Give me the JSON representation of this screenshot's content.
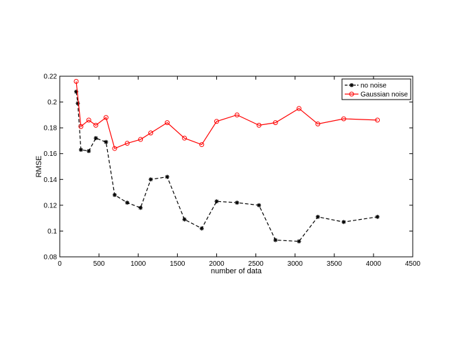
{
  "chart_data": {
    "type": "line",
    "title": "",
    "xlabel": "number of data",
    "ylabel": "RMSE",
    "xlim": [
      0,
      4500
    ],
    "ylim": [
      0.08,
      0.22
    ],
    "xticks": [
      0,
      500,
      1000,
      1500,
      2000,
      2500,
      3000,
      3500,
      4000,
      4500
    ],
    "yticks": [
      0.08,
      0.1,
      0.12,
      0.14,
      0.16,
      0.18,
      0.2,
      0.22
    ],
    "xtick_labels": [
      "0",
      "500",
      "1000",
      "1500",
      "2000",
      "2500",
      "3000",
      "3500",
      "4000",
      "4500"
    ],
    "ytick_labels": [
      "0.08",
      "0.1",
      "0.12",
      "0.14",
      "0.16",
      "0.18",
      "0.2",
      "0.22"
    ],
    "grid": false,
    "legend": "top-right",
    "series": [
      {
        "name": "no noise",
        "color": "#000000",
        "line": "dashed",
        "marker": "asterisk",
        "x": [
          210,
          230,
          270,
          370,
          460,
          590,
          700,
          860,
          1030,
          1160,
          1370,
          1590,
          1810,
          2000,
          2260,
          2540,
          2750,
          3050,
          3290,
          3620,
          4050
        ],
        "y": [
          0.208,
          0.199,
          0.163,
          0.162,
          0.172,
          0.169,
          0.128,
          0.122,
          0.118,
          0.14,
          0.142,
          0.109,
          0.102,
          0.123,
          0.122,
          0.12,
          0.093,
          0.092,
          0.111,
          0.107,
          0.111
        ]
      },
      {
        "name": "Gaussian noise",
        "color": "#ff0000",
        "line": "solid",
        "marker": "circle",
        "x": [
          210,
          270,
          370,
          460,
          590,
          700,
          860,
          1030,
          1160,
          1370,
          1590,
          1810,
          2000,
          2260,
          2540,
          2750,
          3050,
          3290,
          3620,
          4050
        ],
        "y": [
          0.216,
          0.181,
          0.186,
          0.182,
          0.188,
          0.164,
          0.168,
          0.171,
          0.176,
          0.184,
          0.172,
          0.167,
          0.185,
          0.19,
          0.182,
          0.184,
          0.195,
          0.183,
          0.187,
          0.186
        ]
      }
    ]
  }
}
